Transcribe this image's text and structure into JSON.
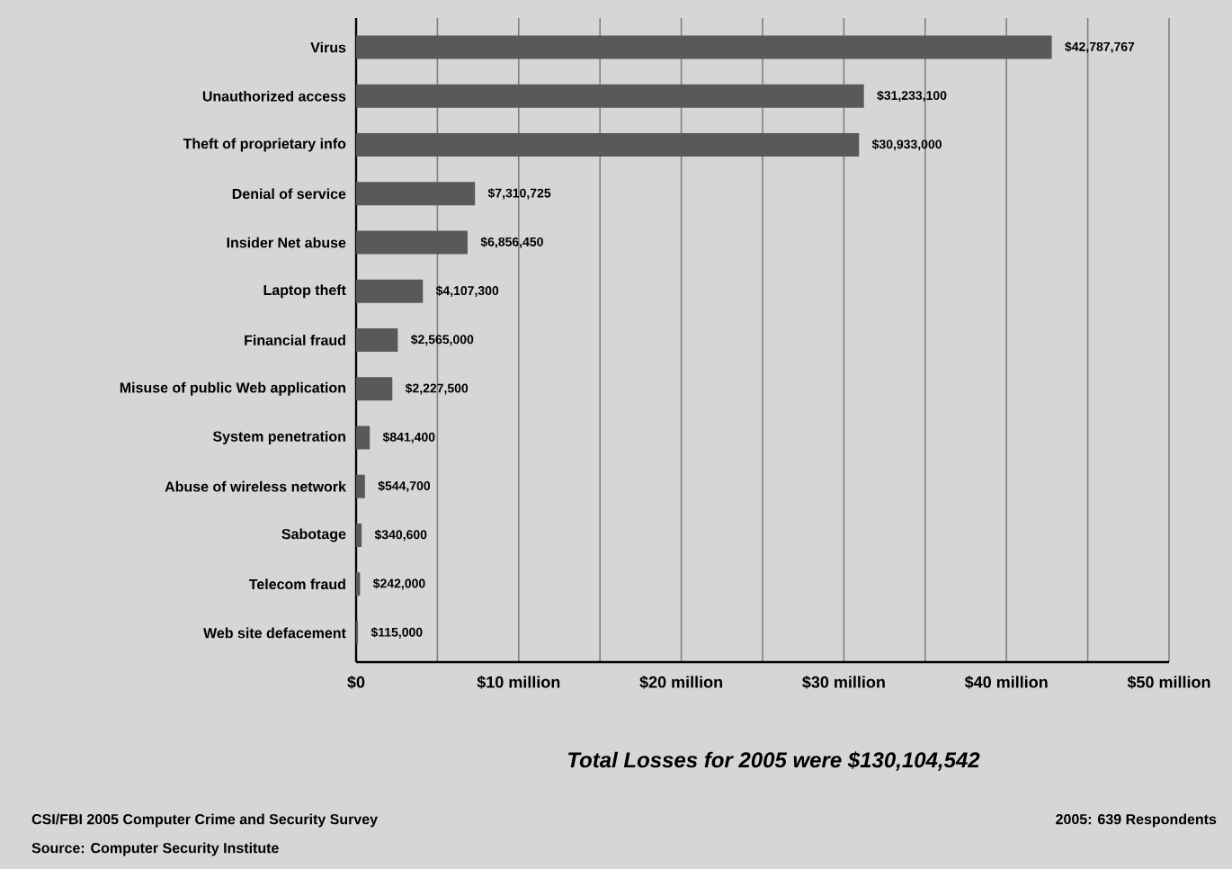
{
  "chart_data": {
    "type": "bar",
    "orientation": "horizontal",
    "categories": [
      "Virus",
      "Unauthorized access",
      "Theft of proprietary info",
      "Denial of service",
      "Insider Net abuse",
      "Laptop theft",
      "Financial fraud",
      "Misuse of public Web application",
      "System penetration",
      "Abuse of wireless network",
      "Sabotage",
      "Telecom fraud",
      "Web site defacement"
    ],
    "values": [
      42787767,
      31233100,
      30933000,
      7310725,
      6856450,
      4107300,
      2565000,
      2227500,
      841400,
      544700,
      340600,
      242000,
      115000
    ],
    "value_labels": [
      "$42,787,767",
      "$31,233,100",
      "$30,933,000",
      "$7,310,725",
      "$6,856,450",
      "$4,107,300",
      "$2,565,000",
      "$2,227,500",
      "$841,400",
      "$544,700",
      "$340,600",
      "$242,000",
      "$115,000"
    ],
    "color": "#595959",
    "xlim": [
      0,
      50000000
    ],
    "xticks": [
      {
        "value": 0,
        "label": "$0"
      },
      {
        "value": 5000000,
        "label": null
      },
      {
        "value": 10000000,
        "label": "$10 million"
      },
      {
        "value": 15000000,
        "label": null
      },
      {
        "value": 20000000,
        "label": "$20 million"
      },
      {
        "value": 25000000,
        "label": null
      },
      {
        "value": 30000000,
        "label": "$30 million"
      },
      {
        "value": 35000000,
        "label": null
      },
      {
        "value": 40000000,
        "label": "$40 million"
      },
      {
        "value": 45000000,
        "label": null
      },
      {
        "value": 50000000,
        "label": "$50 million"
      }
    ],
    "grid": "x",
    "annotations": [
      "Total Losses for 2005 were $130,104,542",
      "CSI/FBI 2005 Computer Crime and Security Survey",
      "Source: Computer Security Institute",
      "2005: 639 Respondents"
    ]
  }
}
